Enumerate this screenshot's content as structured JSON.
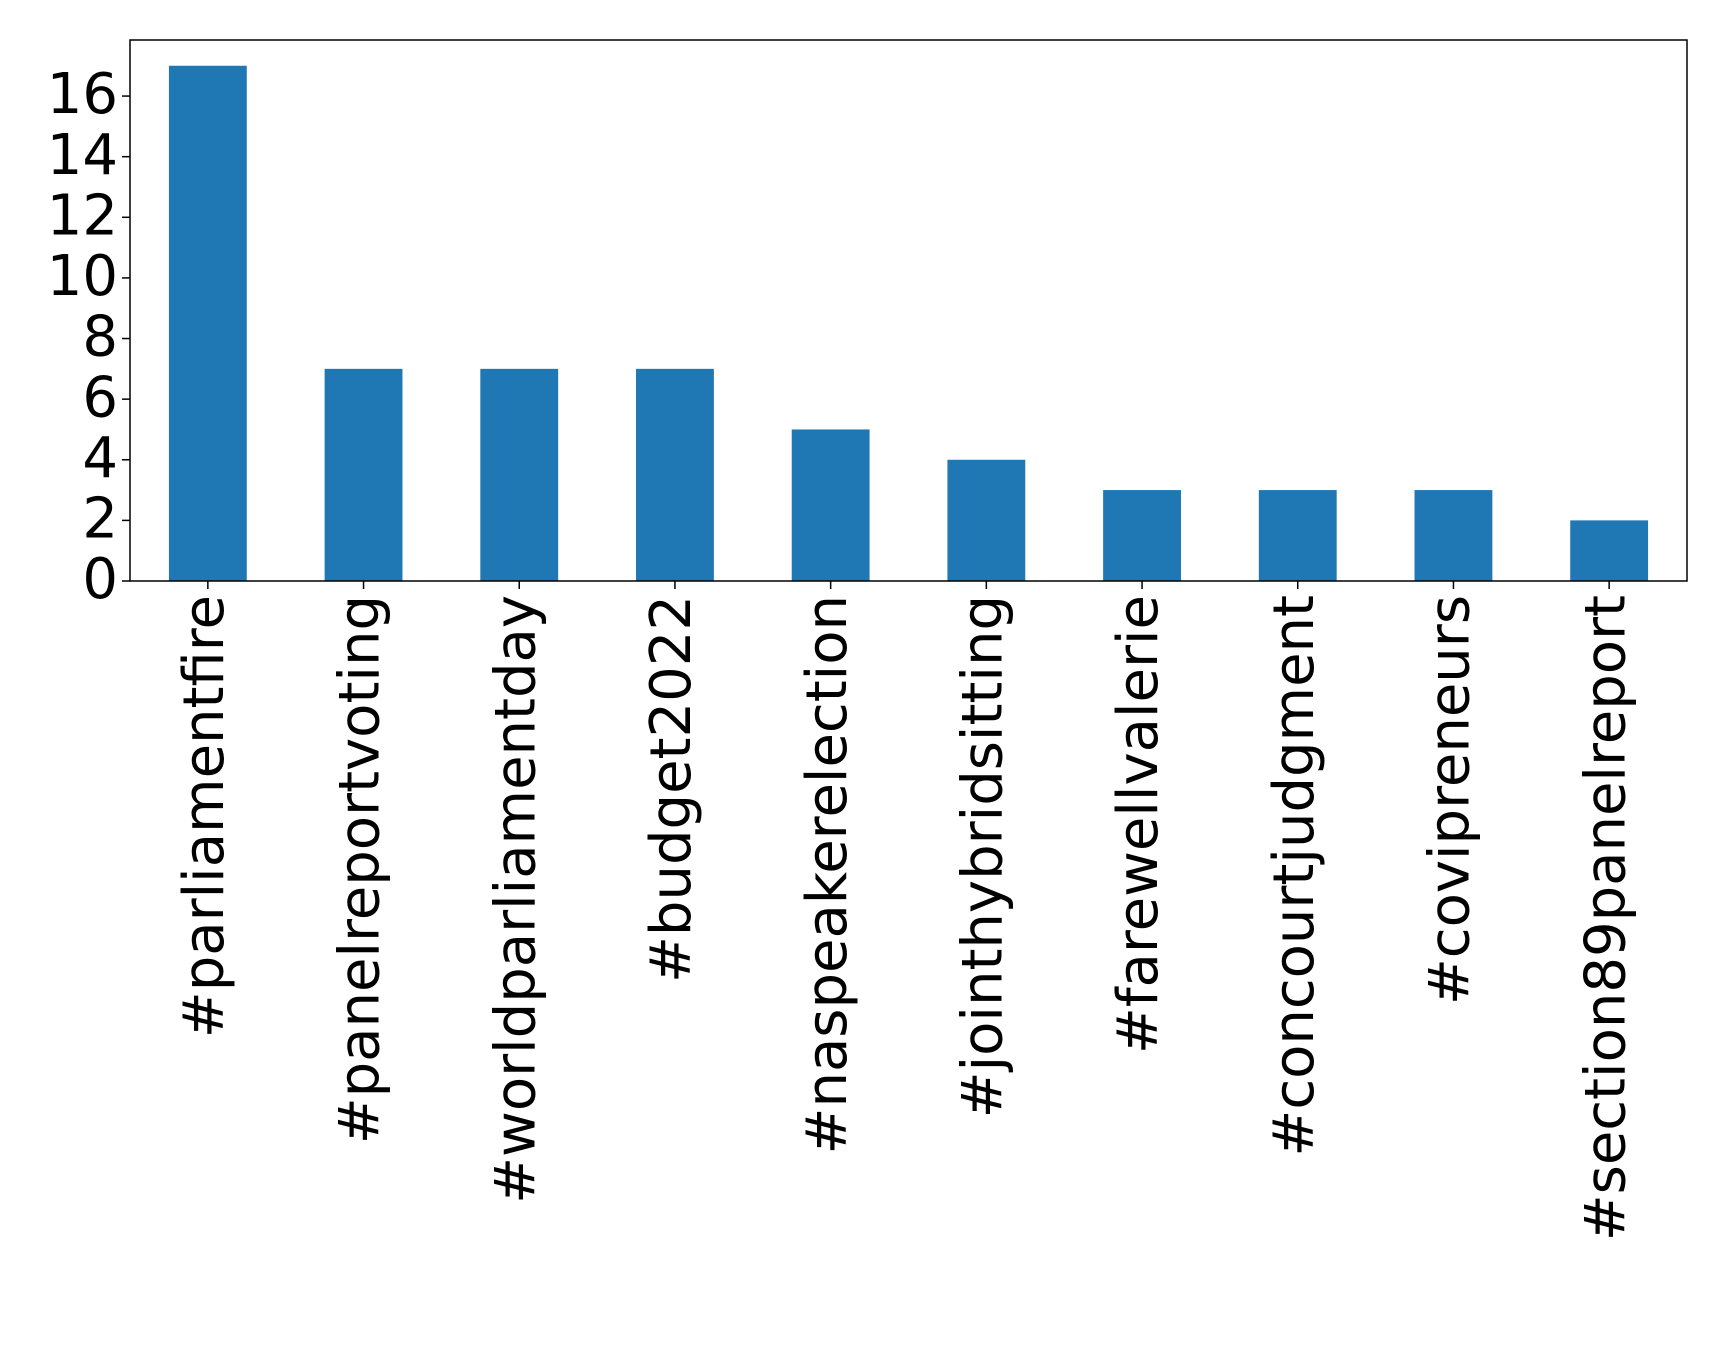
{
  "chart_data": {
    "type": "bar",
    "categories": [
      "#parliamentfire",
      "#panelreportvoting",
      "#worldparliamentday",
      "#budget2022",
      "#naspeakerelection",
      "#jointhybridsitting",
      "#farewellvalerie",
      "#concourtjudgment",
      "#covipreneurs",
      "#section89panelreport"
    ],
    "values": [
      17,
      7,
      7,
      7,
      5,
      4,
      3,
      3,
      3,
      2
    ],
    "color": "#1f77b4",
    "ylim": [
      0,
      17.85
    ],
    "yticks": [
      0,
      2,
      4,
      6,
      8,
      10,
      12,
      14,
      16
    ],
    "grid": false
  }
}
